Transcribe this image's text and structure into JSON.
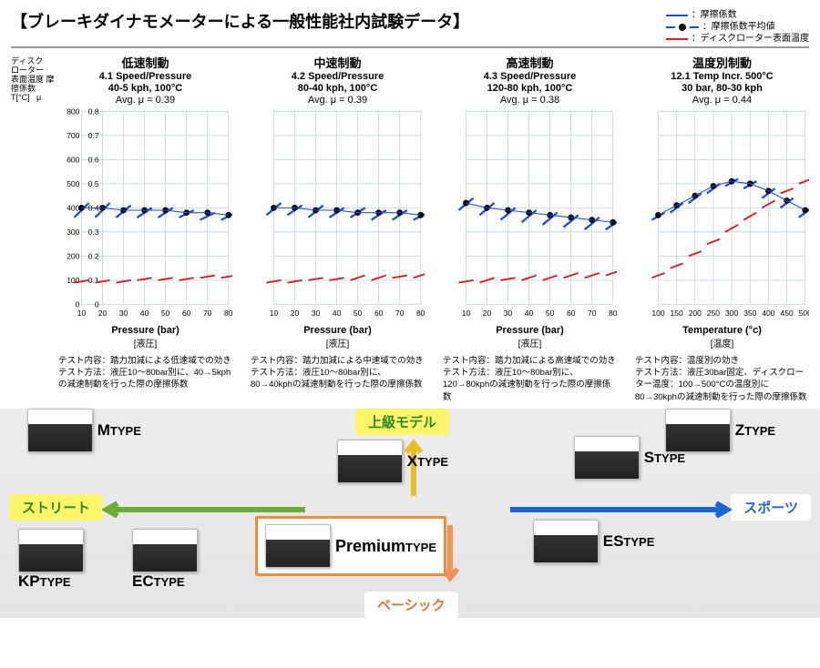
{
  "title": "【ブレーキダイナモメーターによる一般性能社内試験データ】",
  "legend": {
    "blue": "：摩擦係数",
    "black": "：摩擦係数平均値",
    "red": "：ディスクローター表面温度",
    "blue_color": "#1a4fd8",
    "red_color": "#e02020",
    "dot_color": "#000000"
  },
  "yaxis": {
    "l1": "ディスク",
    "l2": "ローター",
    "l3": "表面温度",
    "l4": "摩擦係数",
    "h1": "T[°C]",
    "h2": "μ"
  },
  "common": {
    "grid_color": "#b1c7e4",
    "background": "#ffffff",
    "yticks": [
      0,
      100,
      200,
      300,
      400,
      500,
      600,
      700,
      800
    ],
    "yticks_right": [
      0,
      0.1,
      0.2,
      0.3,
      0.4,
      0.5,
      0.6,
      0.7,
      0.8
    ],
    "label_fontsize": 9
  },
  "charts": [
    {
      "title": "低速制動",
      "sub1": "4.1 Speed/Pressure",
      "sub2": "40-5 kph, 100°C",
      "avg": "Avg. μ = 0.39",
      "xlabel": "Pressure (bar)",
      "xlabel2": "[液圧]",
      "xticks": [
        10,
        20,
        30,
        40,
        50,
        60,
        70,
        80
      ],
      "blue_line": [
        0.42,
        0.42,
        0.41,
        0.4,
        0.4,
        0.39,
        0.38,
        0.38
      ],
      "dot_line": [
        0.4,
        0.4,
        0.39,
        0.39,
        0.39,
        0.38,
        0.38,
        0.37
      ],
      "red_line": [
        0.1,
        0.1,
        0.1,
        0.11,
        0.11,
        0.11,
        0.12,
        0.12
      ],
      "red_low": [
        0.09,
        0.09,
        0.09,
        0.1,
        0.1,
        0.1,
        0.11,
        0.11
      ],
      "blue_low": [
        0.36,
        0.36,
        0.36,
        0.36,
        0.36,
        0.36,
        0.35,
        0.35
      ],
      "desc": "テスト内容：踏力加減による低速域での効き\nテスト方法：液圧10～80bar別に、40→5kphの減速制動を行った際の摩擦係数"
    },
    {
      "title": "中速制動",
      "sub1": "4.2 Speed/Pressure",
      "sub2": "80-40 kph, 100°C",
      "avg": "Avg. μ = 0.39",
      "xlabel": "Pressure (bar)",
      "xlabel2": "[液圧]",
      "xticks": [
        10,
        20,
        30,
        40,
        50,
        60,
        70,
        80
      ],
      "blue_line": [
        0.42,
        0.41,
        0.41,
        0.4,
        0.4,
        0.39,
        0.39,
        0.38
      ],
      "dot_line": [
        0.4,
        0.4,
        0.39,
        0.39,
        0.38,
        0.38,
        0.38,
        0.37
      ],
      "red_line": [
        0.1,
        0.1,
        0.11,
        0.11,
        0.12,
        0.12,
        0.12,
        0.13
      ],
      "red_low": [
        0.09,
        0.09,
        0.1,
        0.1,
        0.1,
        0.1,
        0.11,
        0.11
      ],
      "blue_low": [
        0.37,
        0.37,
        0.36,
        0.36,
        0.36,
        0.35,
        0.35,
        0.35
      ],
      "desc": "テスト内容：踏力加減による中速域での効き\nテスト方法：液圧10～80bar別に、80→40kphの減速制動を行った際の摩擦係数"
    },
    {
      "title": "高速制動",
      "sub1": "4.3 Speed/Pressure",
      "sub2": "120-80 kph, 100°C",
      "avg": "Avg. μ = 0.38",
      "xlabel": "Pressure (bar)",
      "xlabel2": "[液圧]",
      "xticks": [
        10,
        20,
        30,
        40,
        50,
        60,
        70,
        80
      ],
      "blue_line": [
        0.44,
        0.42,
        0.4,
        0.39,
        0.38,
        0.37,
        0.36,
        0.35
      ],
      "dot_line": [
        0.42,
        0.4,
        0.39,
        0.38,
        0.37,
        0.36,
        0.35,
        0.34
      ],
      "red_line": [
        0.1,
        0.11,
        0.11,
        0.12,
        0.12,
        0.13,
        0.13,
        0.14
      ],
      "red_low": [
        0.09,
        0.09,
        0.1,
        0.1,
        0.1,
        0.11,
        0.11,
        0.12
      ],
      "blue_low": [
        0.39,
        0.37,
        0.35,
        0.34,
        0.33,
        0.32,
        0.31,
        0.31
      ],
      "desc": "テスト内容：踏力加減による高速域での効き\nテスト方法：液圧10～80bar別に、120→80kphの減速制動を行った際の摩擦係数"
    },
    {
      "title": "温度別制動",
      "sub1": "12.1 Temp Incr. 500°C",
      "sub2": "30 bar, 80-30 kph",
      "avg": "Avg. μ = 0.44",
      "xlabel": "Temperature (°c)",
      "xlabel2": "[温度]",
      "xticks": [
        100,
        150,
        200,
        250,
        300,
        350,
        400,
        450,
        500
      ],
      "blue_line": [
        0.38,
        0.42,
        0.46,
        0.5,
        0.52,
        0.51,
        0.48,
        0.44,
        0.4
      ],
      "dot_line": [
        0.37,
        0.41,
        0.45,
        0.49,
        0.51,
        0.5,
        0.47,
        0.43,
        0.39
      ],
      "red_line": [
        0.13,
        0.17,
        0.22,
        0.27,
        0.33,
        0.38,
        0.43,
        0.48,
        0.52
      ],
      "red_low": [
        0.11,
        0.15,
        0.2,
        0.25,
        0.3,
        0.35,
        0.4,
        0.46,
        0.5
      ],
      "blue_low": [
        0.35,
        0.38,
        0.42,
        0.46,
        0.49,
        0.48,
        0.44,
        0.4,
        0.36
      ],
      "desc": "テスト内容：温度別の効き\nテスト方法：液圧30bar固定、ディスクローター温度：100→500°Cの温度別に80→30kphの減速制動を行った際の摩擦係数"
    }
  ],
  "bottom": {
    "pill_advanced": {
      "text": "上級モデル",
      "bg": "#fff568",
      "color": "#2a8a2a"
    },
    "pill_street": {
      "text": "ストリート",
      "bg": "#fff568",
      "color": "#2a8a2a"
    },
    "pill_sports": {
      "text": "スポーツ",
      "bg": "#ffffff",
      "color": "#1a66d8"
    },
    "pill_basic": {
      "text": "ベーシック",
      "bg": "#ffffff",
      "color": "#e07830"
    },
    "arrow_green": "#6aae3a",
    "arrow_yellow": "#e8c020",
    "arrow_blue": "#1a66d8",
    "arrow_orange": "#f0945a",
    "products": {
      "m": "M",
      "x": "X",
      "s": "S",
      "z": "Z",
      "kp": "KP",
      "ec": "EC",
      "es": "ES",
      "premium": "Premium"
    },
    "type_suffix": "TYPE"
  }
}
